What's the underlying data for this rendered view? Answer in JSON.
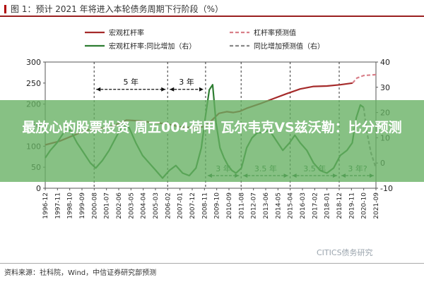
{
  "figure": {
    "title": "图 1：预计 2021 年将进入本轮债务周期下行阶段（%）",
    "source": "资料来源：社科院，Wind，中信证券研究部预测",
    "watermark": "CITICS债务研究"
  },
  "banner": {
    "headline": "最放心的股票投资 周五004荷甲 瓦尔韦克VS兹沃勒：比分预测",
    "color": "#65af61"
  },
  "chart_data": {
    "type": "line",
    "title": "",
    "xlabel": "",
    "ylabel": "",
    "ylim_left": [
      0,
      300
    ],
    "ylim_right": [
      -10,
      40
    ],
    "yticks_left": [
      "0",
      "50",
      "100",
      "150",
      "200",
      "250",
      "300"
    ],
    "yticks_right": [
      "-10",
      "0",
      "10",
      "20",
      "30",
      "40"
    ],
    "x_range": [
      "1996-12",
      "2021-09"
    ],
    "x_ticks": [
      "1996-12",
      "1997-11",
      "1998-10",
      "1999-09",
      "2000-08",
      "2001-07",
      "2002-06",
      "2003-05",
      "2004-04",
      "2005-03",
      "2006-02",
      "2007-01",
      "2007-12",
      "2008-11",
      "2009-10",
      "2010-09",
      "2011-08",
      "2012-07",
      "2013-06",
      "2014-05",
      "2015-04",
      "2016-03",
      "2017-02",
      "2018-01",
      "2018-12",
      "2019-11",
      "2020-10",
      "2021-09"
    ],
    "legend": [
      {
        "label": "宏观杠杆率",
        "color": "#a52a2a",
        "style": "solid"
      },
      {
        "label": "杠杆率预测值",
        "color": "#d9808a",
        "style": "dashed"
      },
      {
        "label": "宏观杠杆率:同比增加（右）",
        "color": "#2e7d32",
        "style": "solid"
      },
      {
        "label": "同比增加预测值（右）",
        "color": "#888888",
        "style": "dashed"
      }
    ],
    "series": [
      {
        "name": "宏观杠杆率",
        "axis": "left",
        "color": "#a52a2a",
        "points": [
          [
            1996.92,
            103
          ],
          [
            1998.0,
            112
          ],
          [
            1999.0,
            125
          ],
          [
            2000.0,
            138
          ],
          [
            2001.0,
            142
          ],
          [
            2002.0,
            148
          ],
          [
            2003.0,
            162
          ],
          [
            2004.0,
            160
          ],
          [
            2005.0,
            156
          ],
          [
            2006.0,
            153
          ],
          [
            2007.0,
            146
          ],
          [
            2008.0,
            144
          ],
          [
            2008.92,
            147
          ],
          [
            2009.5,
            165
          ],
          [
            2009.92,
            178
          ],
          [
            2010.5,
            182
          ],
          [
            2011.0,
            180
          ],
          [
            2011.5,
            183
          ],
          [
            2012.0,
            190
          ],
          [
            2013.0,
            201
          ],
          [
            2014.0,
            213
          ],
          [
            2015.0,
            225
          ],
          [
            2016.0,
            236
          ],
          [
            2017.0,
            242
          ],
          [
            2018.0,
            243
          ],
          [
            2019.0,
            246
          ],
          [
            2019.92,
            250
          ]
        ]
      },
      {
        "name": "杠杆率预测值",
        "axis": "left",
        "color": "#d9808a",
        "dashed": true,
        "points": [
          [
            2019.92,
            250
          ],
          [
            2020.25,
            262
          ],
          [
            2020.75,
            268
          ],
          [
            2021.67,
            270
          ]
        ]
      },
      {
        "name": "宏观杠杆率:同比增加（右）",
        "axis": "right",
        "color": "#2e7d32",
        "points": [
          [
            1996.92,
            2
          ],
          [
            1997.3,
            5
          ],
          [
            1997.8,
            8
          ],
          [
            1998.3,
            12
          ],
          [
            1998.8,
            13
          ],
          [
            1999.3,
            8
          ],
          [
            1999.8,
            4
          ],
          [
            2000.3,
            0
          ],
          [
            2000.7,
            -2
          ],
          [
            2001.2,
            1
          ],
          [
            2001.7,
            5
          ],
          [
            2002.2,
            10
          ],
          [
            2002.7,
            15
          ],
          [
            2003.2,
            14
          ],
          [
            2003.7,
            8
          ],
          [
            2004.2,
            3
          ],
          [
            2004.7,
            0
          ],
          [
            2005.2,
            -3
          ],
          [
            2005.7,
            -6
          ],
          [
            2006.2,
            -3
          ],
          [
            2006.7,
            -1
          ],
          [
            2007.2,
            -4
          ],
          [
            2007.7,
            -5
          ],
          [
            2008.2,
            -2
          ],
          [
            2008.6,
            6
          ],
          [
            2008.9,
            18
          ],
          [
            2009.2,
            29
          ],
          [
            2009.45,
            31
          ],
          [
            2009.7,
            16
          ],
          [
            2010.0,
            6
          ],
          [
            2010.3,
            2
          ],
          [
            2010.6,
            -1
          ],
          [
            2010.9,
            -3
          ],
          [
            2011.2,
            -4
          ],
          [
            2011.6,
            -2
          ],
          [
            2012.0,
            6
          ],
          [
            2012.4,
            10
          ],
          [
            2012.8,
            12
          ],
          [
            2013.2,
            12
          ],
          [
            2013.7,
            13
          ],
          [
            2014.2,
            9
          ],
          [
            2014.7,
            5
          ],
          [
            2015.2,
            8
          ],
          [
            2015.6,
            11
          ],
          [
            2016.0,
            8
          ],
          [
            2016.5,
            5
          ],
          [
            2017.0,
            0
          ],
          [
            2017.5,
            -3
          ],
          [
            2018.0,
            -4
          ],
          [
            2018.5,
            -2
          ],
          [
            2019.0,
            3
          ],
          [
            2019.5,
            5
          ],
          [
            2019.9,
            8
          ],
          [
            2020.2,
            18
          ],
          [
            2020.5,
            23
          ],
          [
            2020.75,
            22
          ]
        ]
      },
      {
        "name": "同比增加预测值（右）",
        "axis": "right",
        "color": "#888888",
        "dashed": true,
        "points": [
          [
            2020.75,
            22
          ],
          [
            2021.0,
            12
          ],
          [
            2021.3,
            4
          ],
          [
            2021.67,
            -2
          ]
        ]
      }
    ],
    "reference_lines": [
      2000.58,
      2006.08,
      2008.92,
      2011.58,
      2015.25,
      2018.92
    ],
    "annotations": [
      {
        "label": "5 年",
        "from": 2000.58,
        "to": 2006.08,
        "level": 235,
        "axis": "left",
        "color": "#111111"
      },
      {
        "label": "3 年",
        "from": 2006.08,
        "to": 2008.92,
        "level": 235,
        "axis": "left",
        "color": "#111111"
      },
      {
        "label": "3 年",
        "from": 2008.92,
        "to": 2011.58,
        "level": -5,
        "axis": "right",
        "color": "#1d6b2f"
      },
      {
        "label": "3.5 年",
        "from": 2011.58,
        "to": 2015.25,
        "level": -5,
        "axis": "right",
        "color": "#1d6b2f"
      },
      {
        "label": "3.5 年",
        "from": 2015.25,
        "to": 2018.92,
        "level": -5,
        "axis": "right",
        "color": "#1d6b2f"
      },
      {
        "label": "3 年?",
        "from": 2018.92,
        "to": 2021.67,
        "level": -5,
        "axis": "right",
        "color": "#1d6b2f"
      }
    ]
  }
}
